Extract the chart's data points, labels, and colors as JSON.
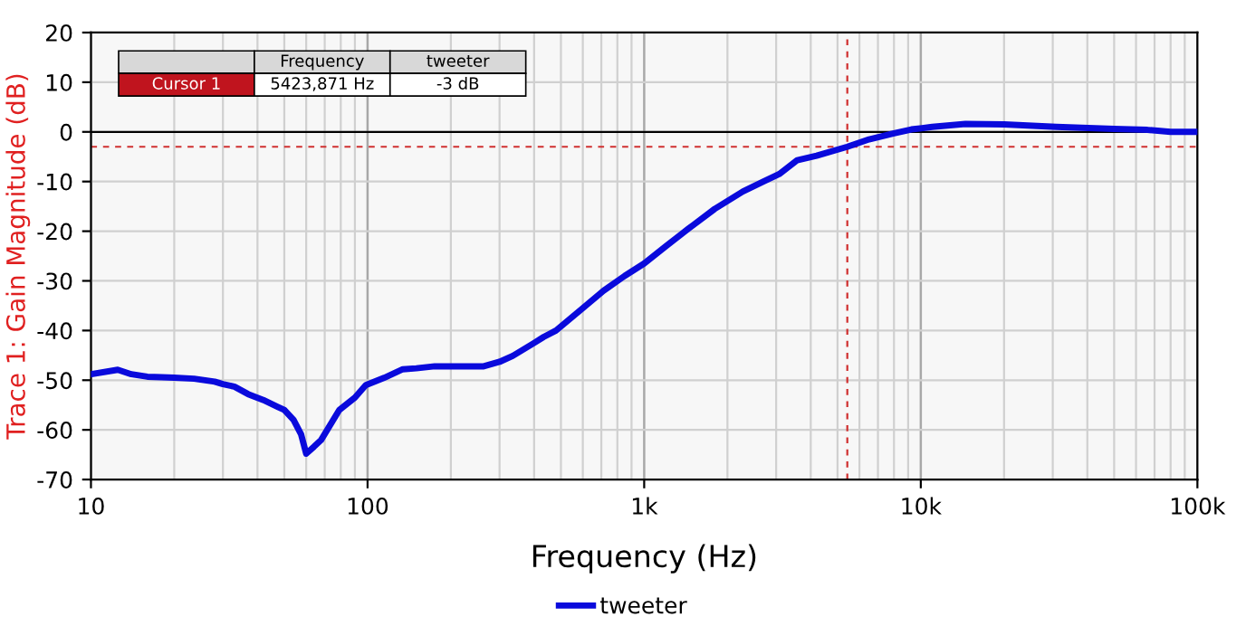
{
  "chart_data": {
    "type": "line",
    "xlabel": "Frequency (Hz)",
    "ylabel": "Trace 1: Gain Magnitude (dB)",
    "log": "x",
    "x": [
      10,
      12.5,
      14,
      16,
      18,
      20,
      23.6,
      28,
      30,
      33,
      37,
      42,
      47,
      50,
      54,
      57.5,
      60,
      64,
      68,
      79,
      90,
      98.5,
      115,
      134,
      150,
      175,
      220,
      263,
      300,
      335,
      400,
      433,
      480,
      600,
      713,
      850,
      1000,
      1200,
      1445,
      1800,
      2276,
      2700,
      3077,
      3576,
      4200,
      5424,
      6500,
      8000,
      9250,
      11000,
      14500,
      20000,
      30900,
      50000,
      66000,
      80000,
      100000
    ],
    "series": [
      {
        "name": "tweeter",
        "color": "#0a0adc",
        "values": [
          -48.8,
          -47.9,
          -48.8,
          -49.3,
          -49.4,
          -49.5,
          -49.7,
          -50.3,
          -50.8,
          -51.3,
          -52.8,
          -54,
          -55.3,
          -56,
          -58,
          -60.9,
          -64.8,
          -63.4,
          -62,
          -56,
          -53.5,
          -51,
          -49.5,
          -47.8,
          -47.6,
          -47.2,
          -47.2,
          -47.2,
          -46.3,
          -45.1,
          -42.5,
          -41.3,
          -40,
          -35.5,
          -32,
          -29,
          -26.5,
          -23,
          -19.5,
          -15.5,
          -12,
          -10,
          -8.5,
          -5.7,
          -4.8,
          -3,
          -1.5,
          -0.3,
          0.5,
          1,
          1.6,
          1.5,
          1,
          0.6,
          0.4,
          0,
          0
        ]
      }
    ],
    "xlim": [
      10,
      100000
    ],
    "ylim": [
      -70,
      20
    ],
    "xticks": [
      10,
      100,
      {
        "value": 1000,
        "label": "1k"
      },
      {
        "value": 10000,
        "label": "10k"
      },
      {
        "value": 100000,
        "label": "100k"
      }
    ],
    "yticks": [
      -70,
      -60,
      -50,
      -40,
      -30,
      -20,
      -10,
      0,
      10,
      20
    ],
    "ref_lines": [
      {
        "axis": "y",
        "value": 0,
        "color": "#000000",
        "line_style": "solid"
      },
      {
        "axis": "y",
        "value": -3,
        "color": "#d03030",
        "line_style": "dashed"
      },
      {
        "axis": "x",
        "value": 5423.871,
        "color": "#d03030",
        "line_style": "dashed"
      }
    ],
    "annotations": [
      "Frequency",
      "tweeter",
      "Cursor 1",
      "5423,871 Hz",
      "-3 dB"
    ],
    "grid": true,
    "legend": "bottom",
    "line_style": "solid",
    "marker": "none"
  }
}
